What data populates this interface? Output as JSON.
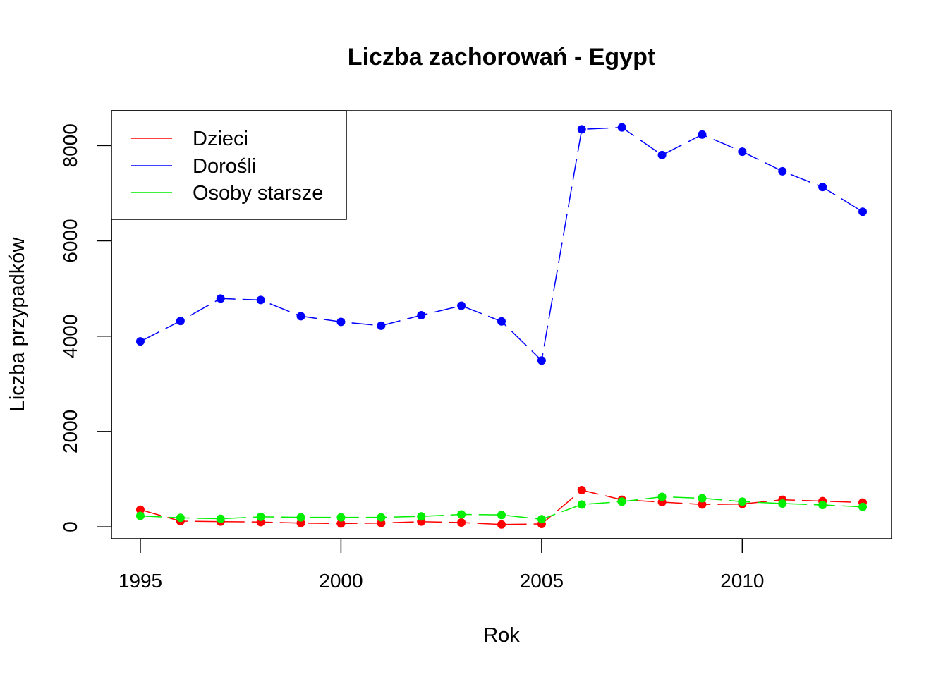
{
  "chart_data": {
    "type": "line",
    "title": "Liczba zachorowań -  Egypt",
    "xlabel": "Rok",
    "ylabel": "Liczba przypadków",
    "x": [
      1995,
      1996,
      1997,
      1998,
      1999,
      2000,
      2001,
      2002,
      2003,
      2004,
      2005,
      2006,
      2007,
      2008,
      2009,
      2010,
      2011,
      2012,
      2013
    ],
    "xlim": [
      1994.28,
      2013.72
    ],
    "ylim": [
      -250,
      8730
    ],
    "x_ticks": [
      1995,
      2000,
      2005,
      2010
    ],
    "y_ticks": [
      0,
      2000,
      4000,
      6000,
      8000
    ],
    "x_tick_labels": [
      "1995",
      "2000",
      "2005",
      "2010"
    ],
    "y_tick_labels": [
      "0",
      "2000",
      "4000",
      "6000",
      "8000"
    ],
    "grid": false,
    "legend_position": "top-left",
    "series": [
      {
        "name": "Dzieci",
        "color": "#ff0000",
        "values": [
          360,
          120,
          110,
          100,
          80,
          70,
          80,
          110,
          90,
          50,
          60,
          770,
          570,
          520,
          470,
          480,
          570,
          540,
          510
        ]
      },
      {
        "name": "Dorośli",
        "color": "#0000ff",
        "values": [
          3890,
          4320,
          4790,
          4760,
          4420,
          4300,
          4220,
          4440,
          4640,
          4310,
          3490,
          8340,
          8380,
          7800,
          8230,
          7870,
          7460,
          7130,
          6610
        ]
      },
      {
        "name": "Osoby starsze",
        "color": "#00ee00",
        "values": [
          230,
          190,
          170,
          210,
          200,
          200,
          200,
          220,
          260,
          250,
          160,
          470,
          530,
          630,
          600,
          530,
          490,
          460,
          420
        ]
      }
    ]
  }
}
